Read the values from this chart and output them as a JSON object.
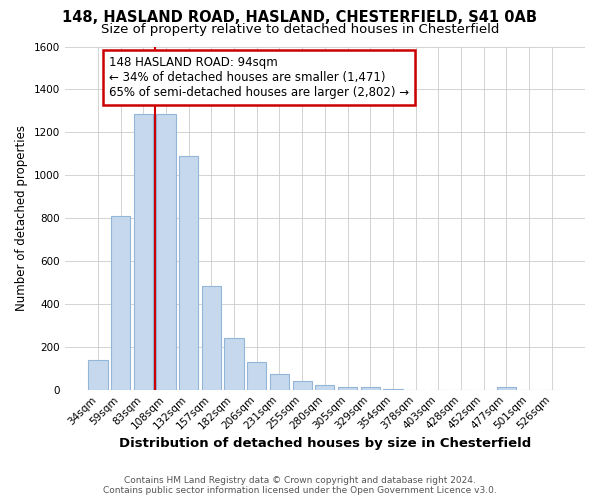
{
  "title1": "148, HASLAND ROAD, HASLAND, CHESTERFIELD, S41 0AB",
  "title2": "Size of property relative to detached houses in Chesterfield",
  "xlabel": "Distribution of detached houses by size in Chesterfield",
  "ylabel": "Number of detached properties",
  "footnote": "Contains HM Land Registry data © Crown copyright and database right 2024.\nContains public sector information licensed under the Open Government Licence v3.0.",
  "categories": [
    "34sqm",
    "59sqm",
    "83sqm",
    "108sqm",
    "132sqm",
    "157sqm",
    "182sqm",
    "206sqm",
    "231sqm",
    "255sqm",
    "280sqm",
    "305sqm",
    "329sqm",
    "354sqm",
    "378sqm",
    "403sqm",
    "428sqm",
    "452sqm",
    "477sqm",
    "501sqm",
    "526sqm"
  ],
  "values": [
    140,
    810,
    1285,
    1285,
    1090,
    485,
    240,
    130,
    75,
    42,
    22,
    15,
    15,
    5,
    0,
    0,
    0,
    0,
    15,
    0,
    0
  ],
  "bar_color": "#c5d8ee",
  "bar_edgecolor": "#93b5d8",
  "vline_x": 2.5,
  "vline_color": "#cc0000",
  "annotation_text": "148 HASLAND ROAD: 94sqm\n← 34% of detached houses are smaller (1,471)\n65% of semi-detached houses are larger (2,802) →",
  "annotation_box_facecolor": "#ffffff",
  "annotation_box_edgecolor": "#cc0000",
  "ylim": [
    0,
    1600
  ],
  "yticks": [
    0,
    200,
    400,
    600,
    800,
    1000,
    1200,
    1400,
    1600
  ],
  "grid_color": "#cccccc",
  "bg_color": "#ffffff",
  "fig_bg_color": "#ffffff",
  "title1_fontsize": 10.5,
  "title2_fontsize": 9.5,
  "tick_fontsize": 7.5,
  "ylabel_fontsize": 8.5,
  "xlabel_fontsize": 9.5,
  "footnote_fontsize": 6.5,
  "annotation_fontsize": 8.5
}
